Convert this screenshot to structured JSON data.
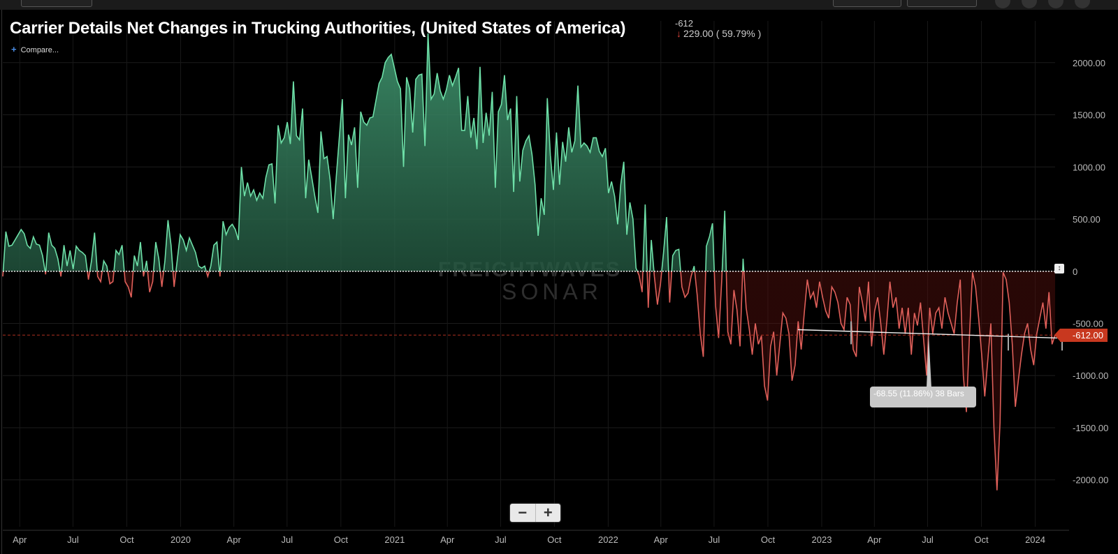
{
  "header": {
    "title": "Carrier Details Net Changes in Trucking Authorities, (United States of America)",
    "last_value": "-612",
    "change": "229.00 ( 59.79% )",
    "compare_label": "Compare..."
  },
  "watermark": {
    "line1": "FREIGHTWAVES",
    "line2": "SONAR"
  },
  "measure_tooltip": "-68.55 (11.86%) 38 Bars",
  "current_label": "-612.00",
  "zoom": {
    "minus": "−",
    "plus": "+"
  },
  "colors": {
    "positive": "#6ee0a8",
    "negative": "#e0605a",
    "current_marker": "#c8381f",
    "background": "#000000"
  },
  "chart_data": {
    "type": "area",
    "title": "Carrier Details Net Changes in Trucking Authorities, (United States of America)",
    "frequency": "weekly",
    "x_start": "2019-03-03",
    "x_end": "2024-02-04",
    "ylim": [
      -2450,
      2400
    ],
    "y_ticks": [
      2000,
      1500,
      1000,
      500,
      0,
      -500,
      -1000,
      -1500,
      -2000
    ],
    "y_tick_labels": [
      "2000.00",
      "1500.00",
      "1000.00",
      "500.00",
      "0",
      "-500.00",
      "-1000.00",
      "-1500.00",
      "-2000.00"
    ],
    "x_tick_labels": [
      {
        "date": "2019-04-01",
        "label": "Apr"
      },
      {
        "date": "2019-07-01",
        "label": "Jul"
      },
      {
        "date": "2019-10-01",
        "label": "Oct"
      },
      {
        "date": "2020-01-01",
        "label": "2020"
      },
      {
        "date": "2020-04-01",
        "label": "Apr"
      },
      {
        "date": "2020-07-01",
        "label": "Jul"
      },
      {
        "date": "2020-10-01",
        "label": "Oct"
      },
      {
        "date": "2021-01-01",
        "label": "2021"
      },
      {
        "date": "2021-04-01",
        "label": "Apr"
      },
      {
        "date": "2021-07-01",
        "label": "Jul"
      },
      {
        "date": "2021-10-01",
        "label": "Oct"
      },
      {
        "date": "2022-01-01",
        "label": "2022"
      },
      {
        "date": "2022-04-01",
        "label": "Apr"
      },
      {
        "date": "2022-07-01",
        "label": "Jul"
      },
      {
        "date": "2022-10-01",
        "label": "Oct"
      },
      {
        "date": "2023-01-01",
        "label": "2023"
      },
      {
        "date": "2023-04-01",
        "label": "Apr"
      },
      {
        "date": "2023-07-01",
        "label": "Jul"
      },
      {
        "date": "2023-10-01",
        "label": "Oct"
      },
      {
        "date": "2024-01-01",
        "label": "2024"
      }
    ],
    "current_value": -612,
    "grid": true,
    "values": [
      -50,
      380,
      240,
      250,
      300,
      350,
      400,
      360,
      250,
      220,
      330,
      260,
      250,
      150,
      -30,
      370,
      250,
      220,
      120,
      -50,
      250,
      50,
      200,
      20,
      240,
      200,
      180,
      150,
      -80,
      100,
      370,
      -50,
      -100,
      100,
      50,
      -120,
      -100,
      200,
      160,
      250,
      -100,
      -150,
      -250,
      150,
      50,
      280,
      -50,
      100,
      -200,
      -100,
      280,
      120,
      -150,
      100,
      490,
      250,
      -150,
      100,
      350,
      300,
      200,
      320,
      250,
      180,
      50,
      30,
      50,
      -50,
      50,
      250,
      280,
      -50,
      480,
      350,
      420,
      450,
      400,
      300,
      1000,
      720,
      850,
      720,
      780,
      680,
      750,
      700,
      900,
      1020,
      1030,
      650,
      1400,
      1230,
      1280,
      1430,
      1220,
      1820,
      1300,
      1260,
      1560,
      700,
      1070,
      900,
      720,
      560,
      1340,
      1080,
      1100,
      880,
      500,
      900,
      1280,
      1650,
      700,
      1310,
      1210,
      1380,
      800,
      1530,
      1430,
      1400,
      1470,
      1480,
      1640,
      1800,
      1860,
      2000,
      2050,
      2080,
      1950,
      1820,
      1750,
      1000,
      1860,
      1750,
      1330,
      1840,
      1880,
      1890,
      1200,
      2280,
      1650,
      1700,
      1900,
      1730,
      1650,
      1740,
      1880,
      1780,
      1860,
      1950,
      1350,
      1350,
      1680,
      1280,
      1470,
      1170,
      1960,
      1230,
      1520,
      1300,
      1720,
      800,
      1530,
      1600,
      1880,
      1450,
      1560,
      760,
      1680,
      860,
      1160,
      1250,
      1300,
      1120,
      830,
      340,
      700,
      540,
      1660,
      1110,
      780,
      1330,
      830,
      1240,
      1050,
      1380,
      1140,
      1250,
      1780,
      1190,
      1230,
      1200,
      1140,
      1280,
      1280,
      1150,
      1100,
      1180,
      750,
      860,
      720,
      450,
      830,
      1050,
      350,
      660,
      500,
      30,
      -40,
      -200,
      640,
      -350,
      300,
      -50,
      -320,
      -120,
      180,
      520,
      -300,
      150,
      200,
      210,
      -150,
      -250,
      -210,
      -50,
      50,
      -230,
      -600,
      -820,
      240,
      330,
      460,
      -330,
      -640,
      -100,
      580,
      -580,
      -700,
      -180,
      -370,
      -720,
      120,
      -350,
      -550,
      -800,
      -500,
      -700,
      -620,
      -1100,
      -1240,
      -720,
      -580,
      -1000,
      -700,
      -400,
      -450,
      -600,
      -1050,
      -900,
      -480,
      -750,
      -400,
      -80,
      -260,
      -200,
      -350,
      -100,
      -250,
      -380,
      -450,
      -150,
      -200,
      -300,
      -500,
      -560,
      -250,
      -320,
      -750,
      -820,
      -150,
      -300,
      -480,
      -100,
      -720,
      -380,
      -250,
      -500,
      -800,
      -480,
      -100,
      -350,
      -250,
      -550,
      -350,
      -600,
      -350,
      -800,
      -400,
      -520,
      -300,
      -650,
      -1000,
      -350,
      -600,
      -400,
      -350,
      -550,
      -250,
      -400,
      -500,
      -600,
      -300,
      -80,
      -1000,
      -1350,
      -620,
      -10,
      -150,
      -450,
      -800,
      -1200,
      -850,
      -500,
      -1500,
      -2100,
      -1450,
      -10,
      -80,
      -300,
      -700,
      -1300,
      -1040,
      -800,
      -600,
      -500,
      -750,
      -900,
      -600,
      -450,
      -300,
      -550,
      -200,
      -700,
      -612
    ]
  }
}
